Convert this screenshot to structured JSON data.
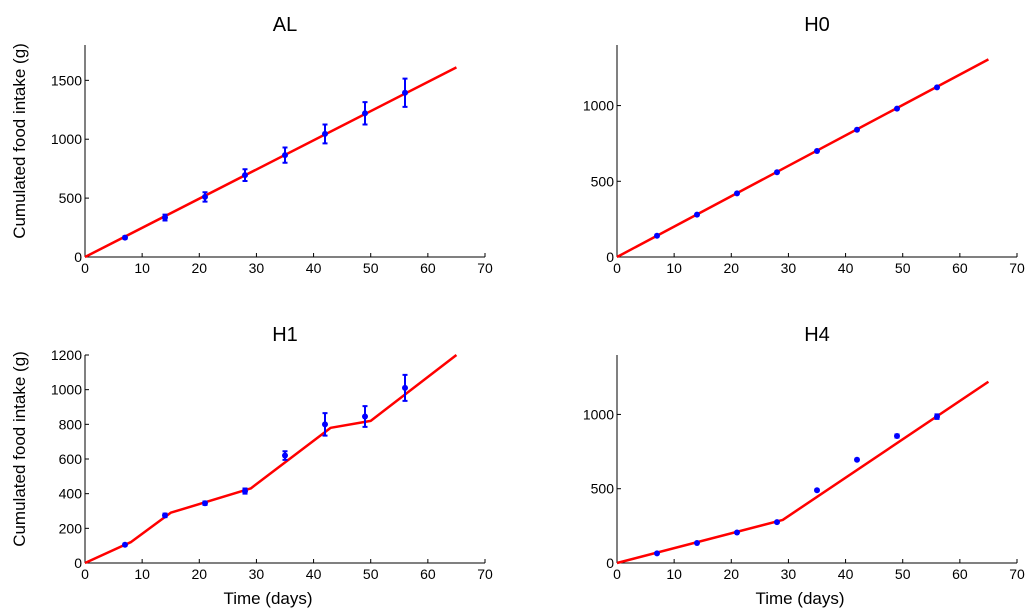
{
  "chart_data": [
    {
      "type": "line",
      "title": "AL",
      "xlabel": "",
      "ylabel": "Cumulated food intake (g)",
      "xlim": [
        0,
        70
      ],
      "ylim": [
        0,
        1800
      ],
      "xticks": [
        0,
        10,
        20,
        30,
        40,
        50,
        60,
        70
      ],
      "yticks": [
        0,
        500,
        1000,
        1500
      ],
      "grid": false,
      "series": [
        {
          "kind": "fit",
          "color": "#ff0000",
          "x": [
            0,
            65
          ],
          "y": [
            0,
            1610
          ]
        },
        {
          "kind": "points",
          "color": "#0000ff",
          "x": [
            7,
            14,
            21,
            28,
            35,
            42,
            49,
            56
          ],
          "y": [
            165,
            335,
            510,
            695,
            865,
            1045,
            1220,
            1395
          ],
          "err": [
            10,
            25,
            40,
            50,
            65,
            80,
            95,
            120
          ]
        }
      ]
    },
    {
      "type": "line",
      "title": "H0",
      "xlabel": "",
      "ylabel": "",
      "xlim": [
        0,
        70
      ],
      "ylim": [
        0,
        1400
      ],
      "xticks": [
        0,
        10,
        20,
        30,
        40,
        50,
        60,
        70
      ],
      "yticks": [
        0,
        500,
        1000
      ],
      "grid": false,
      "series": [
        {
          "kind": "fit",
          "color": "#ff0000",
          "x": [
            0,
            65
          ],
          "y": [
            0,
            1305
          ]
        },
        {
          "kind": "points",
          "color": "#0000ff",
          "x": [
            7,
            14,
            21,
            28,
            35,
            42,
            49,
            56
          ],
          "y": [
            140,
            280,
            420,
            560,
            700,
            840,
            980,
            1120
          ],
          "err": [
            0,
            0,
            0,
            0,
            0,
            0,
            0,
            0
          ]
        }
      ]
    },
    {
      "type": "line",
      "title": "H1",
      "xlabel": "Time (days)",
      "ylabel": "Cumulated food intake (g)",
      "xlim": [
        0,
        70
      ],
      "ylim": [
        0,
        1200
      ],
      "xticks": [
        0,
        10,
        20,
        30,
        40,
        50,
        60,
        70
      ],
      "yticks": [
        0,
        200,
        400,
        600,
        800,
        1000,
        1200
      ],
      "grid": false,
      "series": [
        {
          "kind": "fit",
          "color": "#ff0000",
          "x": [
            0,
            8,
            15,
            29,
            43,
            50,
            65
          ],
          "y": [
            0,
            120,
            290,
            430,
            780,
            820,
            1200
          ]
        },
        {
          "kind": "points",
          "color": "#0000ff",
          "x": [
            7,
            14,
            21,
            28,
            35,
            42,
            49,
            56
          ],
          "y": [
            105,
            275,
            345,
            415,
            620,
            800,
            845,
            1010
          ],
          "err": [
            5,
            10,
            10,
            15,
            25,
            65,
            60,
            75
          ]
        }
      ]
    },
    {
      "type": "line",
      "title": "H4",
      "xlabel": "Time (days)",
      "ylabel": "",
      "xlim": [
        0,
        70
      ],
      "ylim": [
        0,
        1400
      ],
      "xticks": [
        0,
        10,
        20,
        30,
        40,
        50,
        60,
        70
      ],
      "yticks": [
        0,
        500,
        1000
      ],
      "grid": false,
      "series": [
        {
          "kind": "fit",
          "color": "#ff0000",
          "x": [
            0,
            29,
            65
          ],
          "y": [
            0,
            290,
            1220
          ]
        },
        {
          "kind": "points",
          "color": "#0000ff",
          "x": [
            7,
            14,
            21,
            28,
            35,
            42,
            49,
            56
          ],
          "y": [
            65,
            135,
            205,
            275,
            490,
            695,
            855,
            985
          ],
          "err": [
            0,
            0,
            0,
            0,
            0,
            0,
            10,
            15
          ]
        }
      ]
    }
  ]
}
